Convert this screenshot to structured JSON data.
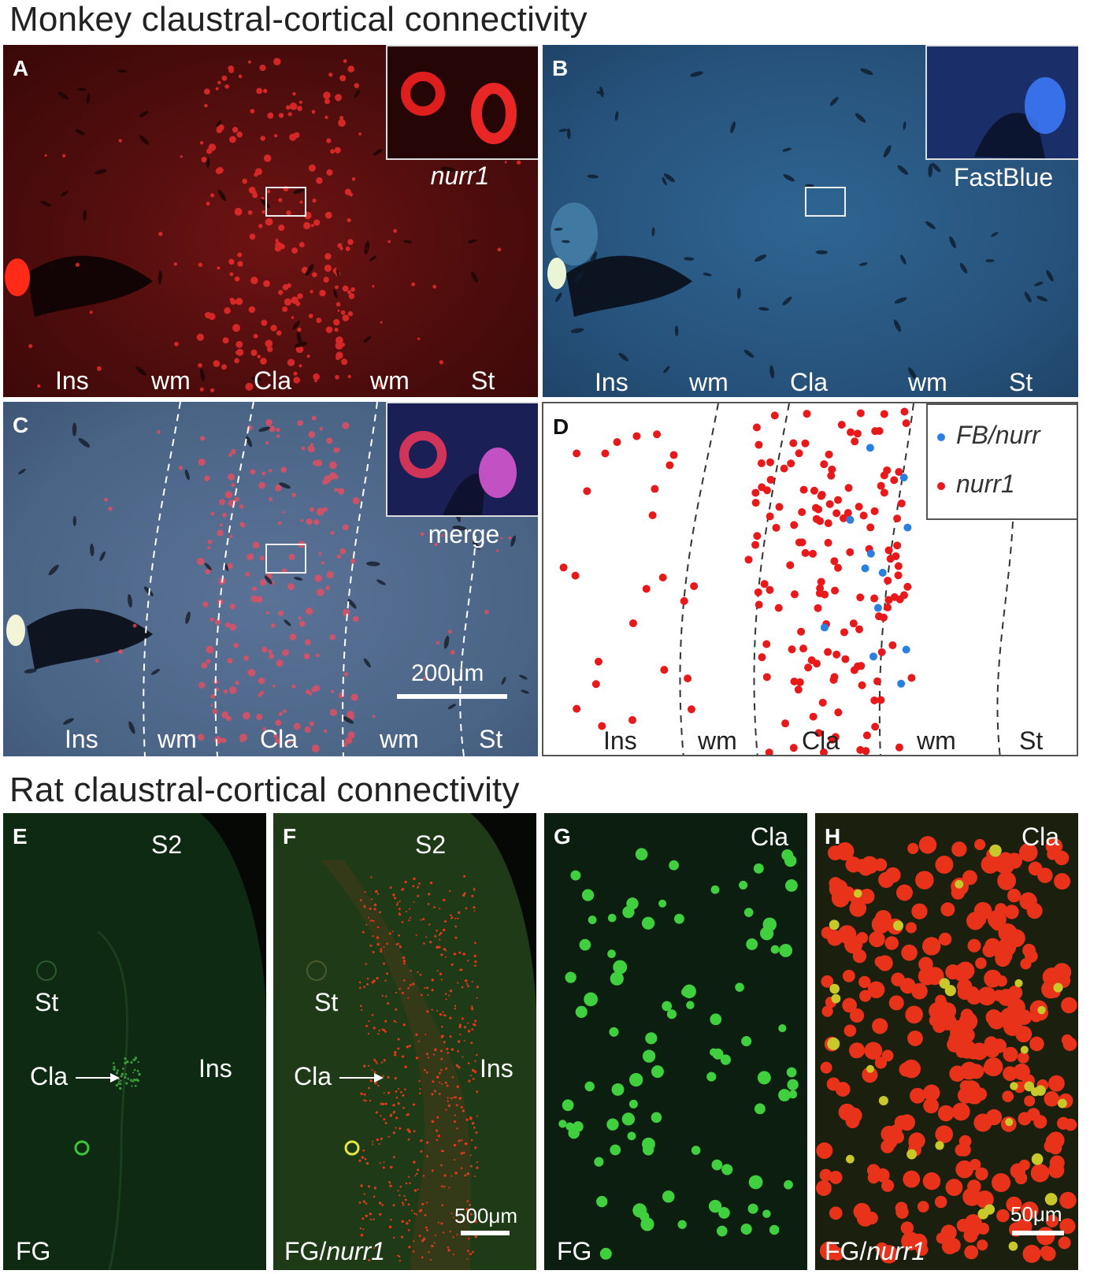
{
  "titles": {
    "monkey": "Monkey claustral-cortical connectivity",
    "rat": "Rat claustral-cortical connectivity"
  },
  "panels": {
    "A": {
      "letter": "A",
      "inset_caption": "nurr1",
      "regions": [
        "Ins",
        "wm",
        "Cla",
        "wm",
        "St"
      ]
    },
    "B": {
      "letter": "B",
      "inset_caption": "FastBlue",
      "regions": [
        "Ins",
        "wm",
        "Cla",
        "wm",
        "St"
      ]
    },
    "C": {
      "letter": "C",
      "inset_caption": "merge",
      "scale": "200μm",
      "regions": [
        "Ins",
        "wm",
        "Cla",
        "wm",
        "St"
      ]
    },
    "D": {
      "letter": "D",
      "legend": [
        "FB/nurr",
        "nurr1"
      ],
      "regions": [
        "Ins",
        "wm",
        "Cla",
        "wm",
        "St"
      ]
    },
    "E": {
      "letter": "E",
      "S2": "S2",
      "St": "St",
      "Cla": "Cla",
      "Ins": "Ins",
      "stain": "FG"
    },
    "F": {
      "letter": "F",
      "S2": "S2",
      "St": "St",
      "Cla": "Cla",
      "Ins": "Ins",
      "stain_prefix": "FG/",
      "stain_gene": "nurr1",
      "scale": "500μm"
    },
    "G": {
      "letter": "G",
      "region": "Cla",
      "stain": "FG"
    },
    "H": {
      "letter": "H",
      "region": "Cla",
      "stain_prefix": "FG/",
      "stain_gene": "nurr1",
      "scale": "50μm"
    }
  },
  "colors": {
    "panelA_bg": "#5a1010",
    "panelB_bg": "#2b5a85",
    "panelC_bg": "#4d6788",
    "rat_green": "#0d2a12",
    "nurr1_dot": "#e8191a",
    "fb_dot": "#2a7fe0"
  },
  "icons": [
    "arrow-right-icon"
  ]
}
